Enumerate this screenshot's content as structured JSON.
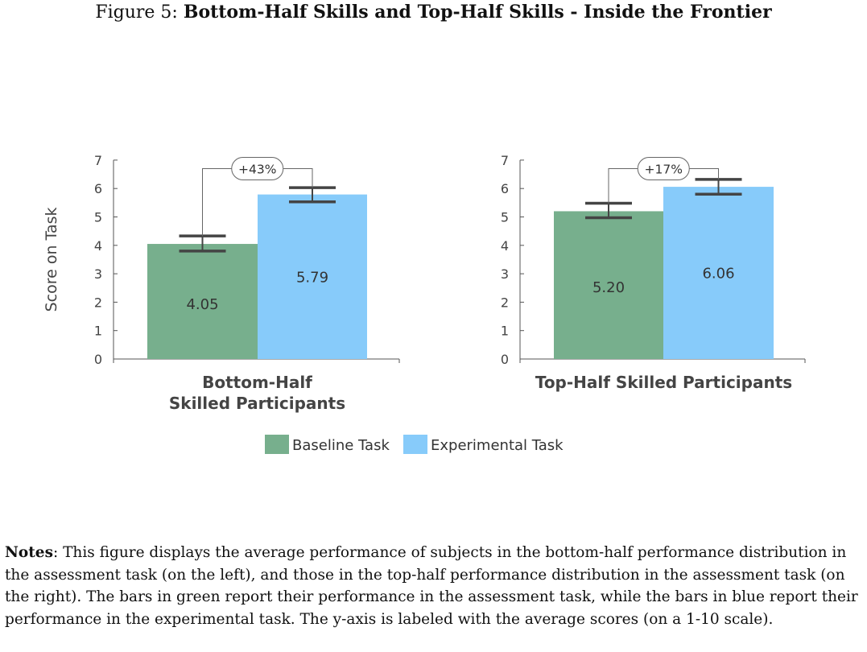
{
  "figure": {
    "label": "Figure 5:",
    "title": "Bottom-Half Skills and Top-Half Skills - Inside the Frontier"
  },
  "colors": {
    "baseline": "#77af8d",
    "experimental": "#87cbfa",
    "axis": "#555555",
    "error_bar": "#444444"
  },
  "chart_data": {
    "type": "bar",
    "ylabel": "Score on Task",
    "ylim": [
      0,
      7
    ],
    "yticks": [
      0,
      1,
      2,
      3,
      4,
      5,
      6,
      7
    ],
    "legend_position": "bottom-center",
    "series_names": [
      "Baseline Task",
      "Experimental Task"
    ],
    "groups": [
      {
        "category": "Bottom-Half Skilled Participants",
        "category_lines": [
          "Bottom-Half",
          "Skilled Participants"
        ],
        "values": [
          4.05,
          5.79
        ],
        "value_labels": [
          "4.05",
          "5.79"
        ],
        "error_bars": [
          [
            3.8,
            4.33
          ],
          [
            5.53,
            6.03
          ]
        ],
        "annotation": "+43%"
      },
      {
        "category": "Top-Half Skilled Participants",
        "category_lines": [
          "Top-Half Skilled Participants"
        ],
        "values": [
          5.2,
          6.06
        ],
        "value_labels": [
          "5.20",
          "6.06"
        ],
        "error_bars": [
          [
            4.97,
            5.48
          ],
          [
            5.8,
            6.32
          ]
        ],
        "annotation": "+17%"
      }
    ]
  },
  "notes": {
    "label": "Notes",
    "text": ": This figure displays the average performance of subjects in the bottom-half performance distribution in the assessment task (on the left), and those in the top-half performance distribution in the assessment task (on the right). The bars in green report their performance in the assessment task, while the bars in blue report their performance in the experimental task. The y-axis is labeled with the average scores (on a 1-10 scale)."
  }
}
